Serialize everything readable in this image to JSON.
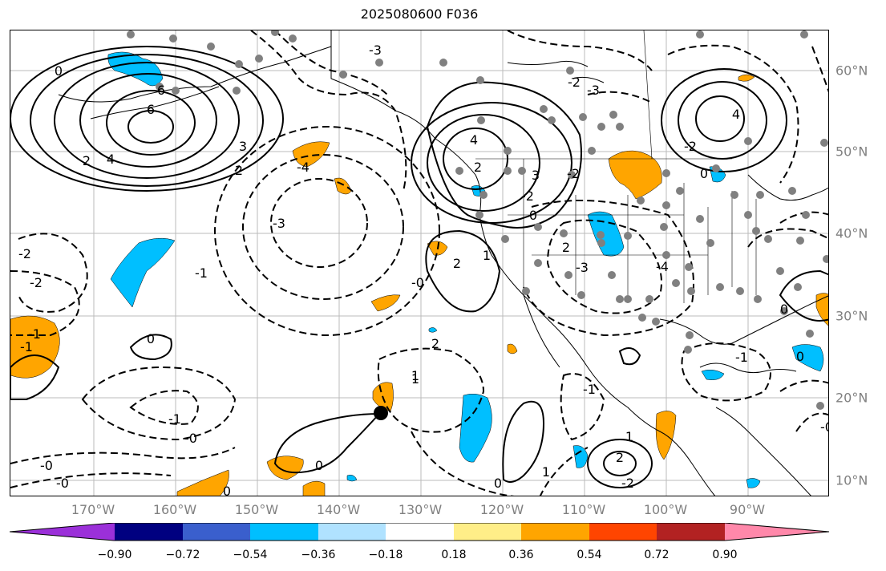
{
  "title": "2025080600 F036",
  "lon_labels": [
    "170°W",
    "160°W",
    "150°W",
    "140°W",
    "130°W",
    "120°W",
    "110°W",
    "100°W",
    "90°W"
  ],
  "lat_labels": [
    "60°N",
    "50°N",
    "40°N",
    "30°N",
    "20°N",
    "10°N"
  ],
  "colorbar": {
    "colors": [
      "#9b30d9",
      "#000080",
      "#3a5fcd",
      "#00bfff",
      "#b0e2ff",
      "#ffffff",
      "#ffee88",
      "#ffa500",
      "#ff4500",
      "#b22222",
      "#ff88aa"
    ],
    "ticks": [
      "−0.90",
      "−0.72",
      "−0.54",
      "−0.36",
      "−0.18",
      "0.18",
      "0.36",
      "0.54",
      "0.72",
      "0.90"
    ]
  },
  "colors": {
    "positive_shade": "#ffa500",
    "negative_shade": "#00bfff",
    "station_dot": "#808080",
    "contour": "#000000",
    "grid": "#bbbbbb"
  },
  "contour_labels": [
    "0",
    "6",
    "6",
    "4",
    "2",
    "-4",
    "-3",
    "2",
    "3",
    "-3",
    "-1",
    "-2",
    "-2",
    "-1",
    "0",
    "-1",
    "-0",
    "-0",
    "-0",
    "0",
    "-1",
    "0",
    "1",
    "2",
    "1",
    "2",
    "4",
    "2",
    "3",
    "0",
    "-2",
    "-2",
    "2",
    "-3",
    "-2",
    "-3",
    "-4",
    "4",
    "-2",
    "0",
    "0",
    "-1",
    "0",
    "-1",
    "1",
    "-0",
    "-0",
    "1",
    "2",
    "1",
    "-2",
    "0"
  ]
}
